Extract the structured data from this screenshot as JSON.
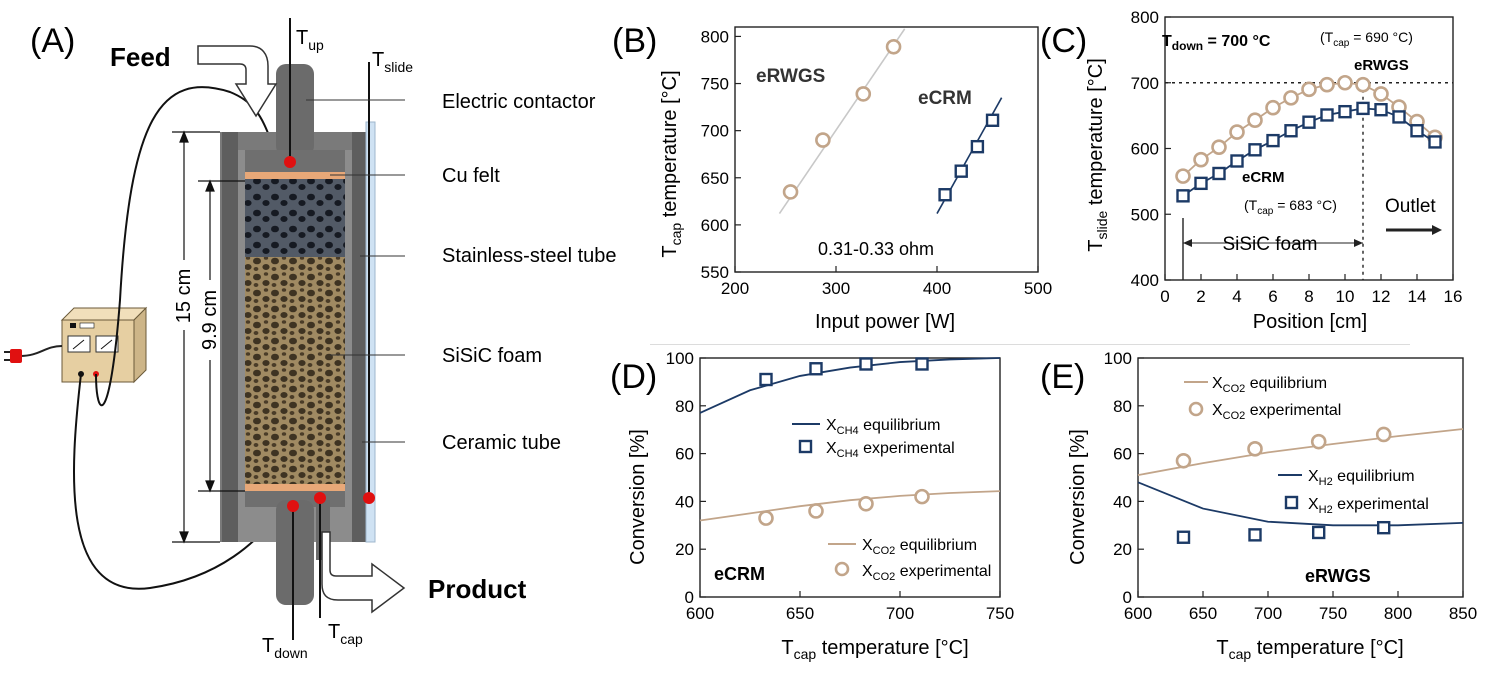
{
  "panelA": {
    "letter": "(A)",
    "feed": "Feed",
    "product": "Product",
    "t_up": "T",
    "t_up_sub": "up",
    "t_slide": "T",
    "t_slide_sub": "slide",
    "t_down": "T",
    "t_down_sub": "down",
    "t_cap": "T",
    "t_cap_sub": "cap",
    "dim_outer": "15 cm",
    "dim_inner": "9.9 cm",
    "labels": [
      "Electric contactor",
      "Cu felt",
      "Stainless-steel tube",
      "SiSiC foam",
      "Ceramic tube"
    ],
    "colors": {
      "tube": "#5a5a5a",
      "felt": "#e8a878",
      "foam_top": "#3a3f4a",
      "foam_main": "#9c8660",
      "glass": "#cfe2f3",
      "thermo": "#e01010",
      "box": "#e9d2a6"
    }
  },
  "panelB": {
    "letter": "(B)",
    "ylabel_main": "T",
    "ylabel_sub": "cap",
    "ylabel_rest": " temperature [°C]",
    "xlabel": "Input power [W]",
    "note": "0.31-0.33 ohm",
    "series_labels": [
      "eRWGS",
      "eCRM"
    ]
  },
  "panelC": {
    "letter": "(C)",
    "ylabel_main": "T",
    "ylabel_sub": "slide",
    "ylabel_rest": " temperature [°C]",
    "xlabel": "Position [cm]",
    "tdown_main": "T",
    "tdown_sub": "down",
    "tdown_rest": " = 700 °C",
    "tcap1_open": "(T",
    "tcap1_sub": "cap",
    "tcap1_rest": " = 690 °C)",
    "tcap2_open": "(T",
    "tcap2_sub": "cap",
    "tcap2_rest": " = 683 °C)",
    "series_labels": [
      "eRWGS",
      "eCRM"
    ],
    "outlet": "Outlet",
    "sisic": "SiSiC foam"
  },
  "panelD": {
    "letter": "(D)",
    "ylabel": "Conversion [%]",
    "xlabel_main": "T",
    "xlabel_sub": "cap",
    "xlabel_rest": " temperature [°C]",
    "tag": "eCRM",
    "legend": [
      {
        "main": "X",
        "sub": "CH4",
        "rest": " equilibrium"
      },
      {
        "main": "X",
        "sub": "CH4",
        "rest": " experimental"
      },
      {
        "main": "X",
        "sub": "CO2",
        "rest": " equilibrium"
      },
      {
        "main": "X",
        "sub": "CO2",
        "rest": " experimental"
      }
    ]
  },
  "panelE": {
    "letter": "(E)",
    "ylabel": "Conversion [%]",
    "xlabel_main": "T",
    "xlabel_sub": "cap",
    "xlabel_rest": " temperature [°C]",
    "tag": "eRWGS",
    "legend": [
      {
        "main": "X",
        "sub": "CO2",
        "rest": " equilibrium"
      },
      {
        "main": "X",
        "sub": "CO2",
        "rest": " experimental"
      },
      {
        "main": "X",
        "sub": "H2",
        "rest": " equilibrium"
      },
      {
        "main": "X",
        "sub": "H2",
        "rest": " experimental"
      }
    ]
  },
  "chart_data": [
    {
      "id": "B",
      "type": "scatter",
      "xlim": [
        200,
        500
      ],
      "ylim": [
        550,
        810
      ],
      "xticks": [
        200,
        300,
        400,
        500
      ],
      "yticks": [
        550,
        600,
        650,
        700,
        750,
        800
      ],
      "series": [
        {
          "name": "eRWGS",
          "marker": "circle",
          "color": "#c2a58a",
          "x": [
            255,
            287,
            327,
            357
          ],
          "y": [
            635,
            690,
            739,
            789
          ],
          "fit": {
            "x": [
              244,
              368
            ],
            "y": [
              612,
              808
            ]
          }
        },
        {
          "name": "eCRM",
          "marker": "square",
          "color": "#1c3a66",
          "x": [
            408,
            424,
            440,
            455
          ],
          "y": [
            632,
            657,
            683,
            711
          ],
          "fit": {
            "x": [
              400,
              464
            ],
            "y": [
              612,
              735
            ]
          }
        }
      ]
    },
    {
      "id": "C",
      "type": "line",
      "xlim": [
        0,
        16
      ],
      "ylim": [
        400,
        800
      ],
      "xticks": [
        0,
        2,
        4,
        6,
        8,
        10,
        12,
        14,
        16
      ],
      "yticks": [
        400,
        500,
        600,
        700,
        800
      ],
      "hline": 700,
      "vline": 11,
      "span": [
        1,
        11
      ],
      "series": [
        {
          "name": "eRWGS",
          "marker": "circle",
          "color": "#c2a58a",
          "x": [
            1,
            2,
            3,
            4,
            5,
            6,
            7,
            8,
            9,
            10,
            11,
            12,
            13,
            14,
            15
          ],
          "y": [
            558,
            583,
            602,
            625,
            643,
            662,
            677,
            690,
            697,
            700,
            697,
            683,
            663,
            641,
            617
          ]
        },
        {
          "name": "eCRM",
          "marker": "square",
          "color": "#1c3a66",
          "x": [
            1,
            2,
            3,
            4,
            5,
            6,
            7,
            8,
            9,
            10,
            11,
            12,
            13,
            14,
            15
          ],
          "y": [
            528,
            547,
            562,
            581,
            598,
            612,
            627,
            640,
            651,
            656,
            661,
            659,
            648,
            627,
            610
          ]
        }
      ]
    },
    {
      "id": "D",
      "type": "scatter",
      "xlim": [
        600,
        750
      ],
      "ylim": [
        0,
        100
      ],
      "xticks": [
        600,
        650,
        700,
        750
      ],
      "yticks": [
        0,
        20,
        40,
        60,
        80,
        100
      ],
      "series": [
        {
          "name": "X_CH4 equilibrium",
          "kind": "line",
          "color": "#1c3a66",
          "x": [
            600,
            625,
            650,
            675,
            700,
            725,
            750
          ],
          "y": [
            77,
            86.5,
            92.5,
            96,
            98.3,
            99.4,
            100
          ]
        },
        {
          "name": "X_CH4 experimental",
          "kind": "square",
          "color": "#1c3a66",
          "x": [
            633,
            658,
            683,
            711
          ],
          "y": [
            91,
            95.5,
            97.5,
            97.5
          ]
        },
        {
          "name": "X_CO2 equilibrium",
          "kind": "line",
          "color": "#c2a58a",
          "x": [
            600,
            625,
            650,
            675,
            700,
            725,
            750
          ],
          "y": [
            32,
            35,
            38,
            40.5,
            42.3,
            43.5,
            44.3
          ]
        },
        {
          "name": "X_CO2 experimental",
          "kind": "circle",
          "color": "#c2a58a",
          "x": [
            633,
            658,
            683,
            711
          ],
          "y": [
            33,
            36,
            39,
            42
          ]
        }
      ]
    },
    {
      "id": "E",
      "type": "scatter",
      "xlim": [
        600,
        850
      ],
      "ylim": [
        0,
        100
      ],
      "xticks": [
        600,
        650,
        700,
        750,
        800,
        850
      ],
      "yticks": [
        0,
        20,
        40,
        60,
        80,
        100
      ],
      "series": [
        {
          "name": "X_CO2 equilibrium",
          "kind": "line",
          "color": "#c2a58a",
          "x": [
            600,
            650,
            700,
            750,
            800,
            850
          ],
          "y": [
            51,
            56,
            60.5,
            64,
            67.3,
            70.3
          ]
        },
        {
          "name": "X_CO2 experimental",
          "kind": "circle",
          "color": "#c2a58a",
          "x": [
            635,
            690,
            739,
            789
          ],
          "y": [
            57,
            62,
            65,
            68
          ]
        },
        {
          "name": "X_H2 equilibrium",
          "kind": "line",
          "color": "#1c3a66",
          "x": [
            600,
            650,
            700,
            750,
            800,
            850
          ],
          "y": [
            48,
            37,
            31.5,
            30,
            30,
            31
          ]
        },
        {
          "name": "X_H2 experimental",
          "kind": "square",
          "color": "#1c3a66",
          "x": [
            635,
            690,
            739,
            789
          ],
          "y": [
            25,
            26,
            27,
            29
          ]
        }
      ]
    }
  ]
}
